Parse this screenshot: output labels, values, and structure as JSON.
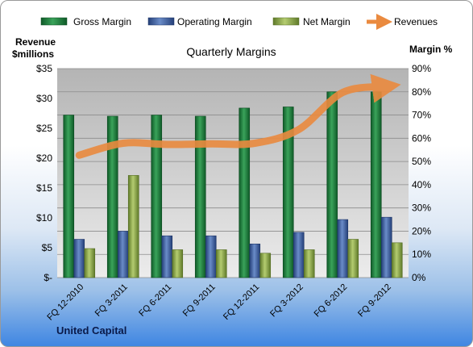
{
  "chart_data": {
    "type": "bar",
    "title": "Quarterly Margins",
    "categories": [
      "FQ 12-2010",
      "FQ 3-2011",
      "FQ 6-2011",
      "FQ 9-2011",
      "FQ 12-2011",
      "FQ 3-2012",
      "FQ 6-2012",
      "FQ 9-2012"
    ],
    "series": [
      {
        "name": "Gross Margin",
        "axis": "right",
        "unit": "%",
        "values": [
          70.0,
          69.5,
          70.0,
          69.5,
          73.0,
          73.5,
          80.0,
          80.0
        ]
      },
      {
        "name": "Operating Margin",
        "axis": "right",
        "unit": "%",
        "values": [
          16.5,
          20.0,
          18.0,
          18.0,
          14.5,
          19.5,
          25.0,
          26.0
        ]
      },
      {
        "name": "Net Margin",
        "axis": "right",
        "unit": "%",
        "values": [
          12.5,
          44.0,
          12.0,
          12.0,
          10.5,
          12.0,
          16.5,
          15.0
        ]
      },
      {
        "name": "Revenues",
        "type": "line",
        "axis": "left",
        "unit": "$millions",
        "values": [
          20.5,
          22.5,
          22.3,
          22.4,
          22.5,
          24.8,
          31.0,
          32.0
        ]
      }
    ],
    "ylabel_left": "Revenue $millions",
    "ylabel_right": "Margin %",
    "ylim_left": [
      0,
      35
    ],
    "ylim_right": [
      0,
      90
    ],
    "yticks_left": [
      "$-",
      "$5",
      "$10",
      "$15",
      "$20",
      "$25",
      "$30",
      "$35"
    ],
    "yticks_right": [
      "0%",
      "10%",
      "20%",
      "30%",
      "40%",
      "50%",
      "60%",
      "70%",
      "80%",
      "90%"
    ],
    "legend_position": "top",
    "grid": "horizontal",
    "footer": "United Capital",
    "colors": {
      "gross_margin": "#1a7a3a",
      "operating_margin": "#3a5ea0",
      "net_margin": "#8aa84a",
      "revenues": "#ea8a3f",
      "plot_background": "#c8c8c8"
    }
  }
}
